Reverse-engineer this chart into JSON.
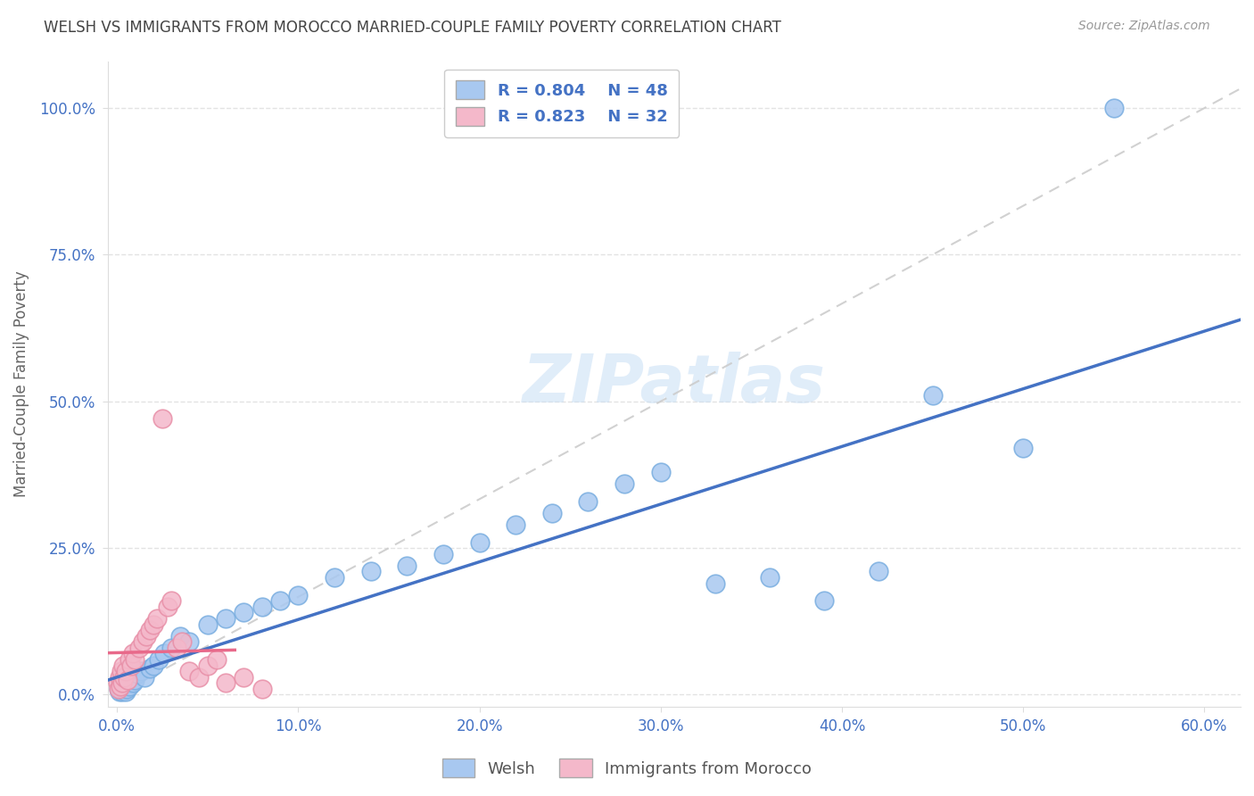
{
  "title": "WELSH VS IMMIGRANTS FROM MOROCCO MARRIED-COUPLE FAMILY POVERTY CORRELATION CHART",
  "source": "Source: ZipAtlas.com",
  "xlabel_vals": [
    0,
    10,
    20,
    30,
    40,
    50,
    60
  ],
  "ylabel_vals": [
    0,
    25,
    50,
    75,
    100
  ],
  "ylabel_label": "Married-Couple Family Poverty",
  "xlim": [
    -0.5,
    62
  ],
  "ylim": [
    -2,
    108
  ],
  "welsh_color": "#A8C8F0",
  "welsh_edge_color": "#7AAEE0",
  "morocco_color": "#F4B8CA",
  "morocco_edge_color": "#E890A8",
  "welsh_line_color": "#4472C4",
  "morocco_line_color": "#E8698A",
  "diag_color": "#CCCCCC",
  "legend_R_welsh": "R = 0.804",
  "legend_N_welsh": "N = 48",
  "legend_R_morocco": "R = 0.823",
  "legend_N_morocco": "N = 32",
  "watermark": "ZIPatlas",
  "welsh_x": [
    0.1,
    0.15,
    0.2,
    0.25,
    0.3,
    0.35,
    0.4,
    0.45,
    0.5,
    0.55,
    0.6,
    0.7,
    0.8,
    0.9,
    1.0,
    1.1,
    1.3,
    1.5,
    1.8,
    2.0,
    2.3,
    2.6,
    3.0,
    3.5,
    4.0,
    5.0,
    6.0,
    7.0,
    8.0,
    9.0,
    10.0,
    12.0,
    14.0,
    16.0,
    18.0,
    20.0,
    22.0,
    24.0,
    26.0,
    28.0,
    30.0,
    33.0,
    36.0,
    39.0,
    42.0,
    45.0,
    50.0,
    55.0
  ],
  "welsh_y": [
    1.0,
    0.5,
    2.0,
    1.0,
    0.5,
    1.5,
    2.0,
    1.0,
    0.5,
    1.0,
    2.5,
    1.5,
    3.0,
    2.0,
    2.5,
    3.5,
    4.0,
    3.0,
    4.5,
    5.0,
    6.0,
    7.0,
    8.0,
    10.0,
    9.0,
    12.0,
    13.0,
    14.0,
    15.0,
    16.0,
    17.0,
    20.0,
    21.0,
    22.0,
    24.0,
    26.0,
    29.0,
    31.0,
    33.0,
    36.0,
    38.0,
    19.0,
    20.0,
    16.0,
    21.0,
    51.0,
    42.0,
    100.0
  ],
  "morocco_x": [
    0.05,
    0.1,
    0.15,
    0.2,
    0.25,
    0.3,
    0.35,
    0.4,
    0.5,
    0.6,
    0.7,
    0.8,
    0.9,
    1.0,
    1.2,
    1.4,
    1.6,
    1.8,
    2.0,
    2.2,
    2.5,
    2.8,
    3.0,
    3.3,
    3.6,
    4.0,
    4.5,
    5.0,
    5.5,
    6.0,
    7.0,
    8.0
  ],
  "morocco_y": [
    2.0,
    1.0,
    3.0,
    1.5,
    4.0,
    2.0,
    5.0,
    3.0,
    4.0,
    2.5,
    6.0,
    5.0,
    7.0,
    6.0,
    8.0,
    9.0,
    10.0,
    11.0,
    12.0,
    13.0,
    47.0,
    15.0,
    16.0,
    8.0,
    9.0,
    4.0,
    3.0,
    5.0,
    6.0,
    2.0,
    3.0,
    1.0
  ],
  "grid_color": "#DDDDDD",
  "background_color": "#FFFFFF",
  "title_color": "#444444",
  "tick_color": "#4472C4"
}
